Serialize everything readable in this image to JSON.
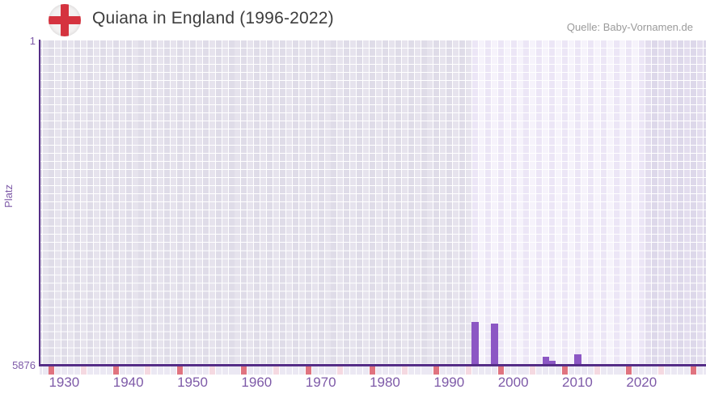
{
  "header": {
    "title": "Quiana in England (1996-2022)",
    "source_label": "Quelle: Baby-Vornamen.de",
    "flag": {
      "circle_color": "#f3f1f1",
      "cross_color": "#d5333f"
    }
  },
  "chart_data": {
    "type": "bar",
    "title": "Quiana in England (1996-2022)",
    "xlabel": "",
    "ylabel": "Platz",
    "y_axis": {
      "top_tick_label": "1",
      "bottom_tick_label": "5876",
      "min": 1,
      "max": 5876,
      "inverted": true
    },
    "x_axis": {
      "first_year": 1928,
      "last_year": 2032,
      "decade_tick_labels": [
        "1930",
        "1940",
        "1950",
        "1960",
        "1970",
        "1980",
        "1990",
        "2000",
        "2010",
        "2020"
      ]
    },
    "highlight_period": {
      "start_year": 1996,
      "end_year": 2022
    },
    "series": [
      {
        "name": "Quiana",
        "points": [
          {
            "year": 1996,
            "rank": 5106
          },
          {
            "year": 1999,
            "rank": 5128
          },
          {
            "year": 2007,
            "rank": 5733
          },
          {
            "year": 2008,
            "rank": 5810
          },
          {
            "year": 2012,
            "rank": 5697
          }
        ]
      }
    ],
    "legend": null,
    "grid": true,
    "colors": {
      "bar": "#8c57c4",
      "axis": "#552d87",
      "axis_label": "#7e5aa8",
      "grid_pre_even": "#dfdce8",
      "grid_pre_odd": "#e6e3ed",
      "grid_band_even": "#ece6f6",
      "grid_band_odd": "#f6f3fb",
      "grid_post_even": "#ddd8ea",
      "grid_post_odd": "#e3ddee",
      "tick_default": "#ebe8f3",
      "tick_decade": "#e0737f",
      "tick_half_decade": "#f5d9e1",
      "title_text": "#3d3d3d",
      "source_text": "#9b9b9b"
    }
  }
}
